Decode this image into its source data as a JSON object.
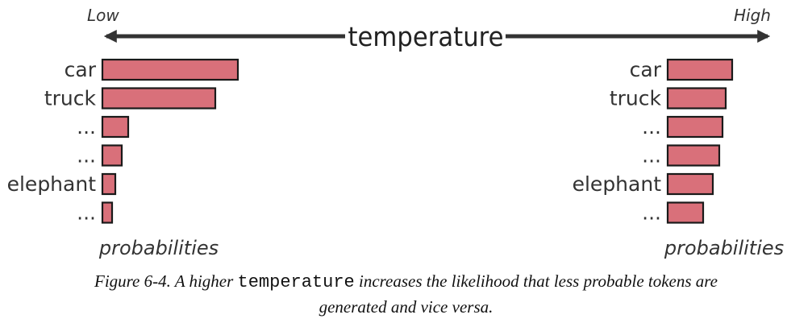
{
  "chart_data": {
    "type": "bar",
    "axis_label": "temperature",
    "low_label": "Low",
    "high_label": "High",
    "panels": [
      {
        "side": "low",
        "categories": [
          "car",
          "truck",
          "...",
          "...",
          "elephant",
          "..."
        ],
        "values": [
          0.42,
          0.35,
          0.08,
          0.06,
          0.04,
          0.03
        ],
        "xlabel": "probabilities"
      },
      {
        "side": "high",
        "categories": [
          "car",
          "truck",
          "...",
          "...",
          "elephant",
          "..."
        ],
        "values": [
          0.2,
          0.18,
          0.17,
          0.16,
          0.14,
          0.11
        ],
        "xlabel": "probabilities"
      }
    ],
    "bar_color": "#d9707a",
    "bar_stroke": "#1a1a1a"
  },
  "caption": {
    "prefix": "Figure 6-4. A higher ",
    "code": "temperature",
    "line1_rest": " increases the likelihood that less probable tokens are",
    "line2": "generated and vice versa."
  }
}
